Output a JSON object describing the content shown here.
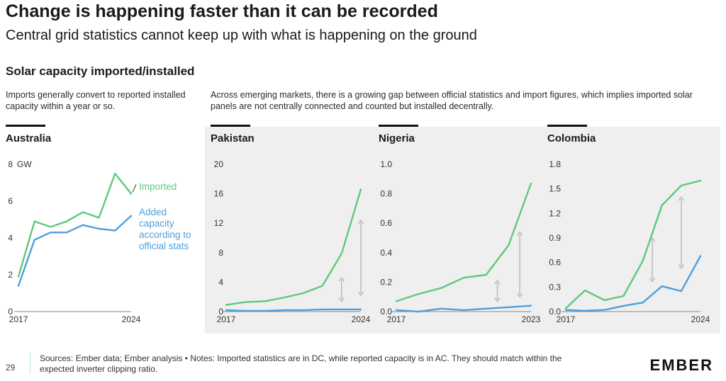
{
  "header": {
    "title": "Change is happening faster than it can be recorded",
    "subtitle": "Central grid statistics cannot keep up with what is happening on the ground",
    "section_title": "Solar capacity imported/installed"
  },
  "notes": {
    "left": "Imports generally convert to reported installed capacity within a year or so.",
    "right": "Across emerging markets, there is a growing gap between official statistics and import figures, which implies imported solar panels are not centrally connected and counted but installed decentrally."
  },
  "colors": {
    "imported": "#5ec97b",
    "official": "#4f9fdc",
    "arrow": "#bdbdbd",
    "panel_bg": "#efefef"
  },
  "legend": {
    "imported": "Imported",
    "official": "Added capacity according to official stats"
  },
  "footer": {
    "page_number": "29",
    "sources": "Sources: Ember data; Ember analysis • Notes: Imported statistics are in DC, while reported capacity is in AC. They should match within the expected inverter clipping ratio.",
    "logo": "EMBER"
  },
  "chart_data": [
    {
      "type": "line",
      "title": "Australia",
      "unit": "GW",
      "x": [
        2017,
        2018,
        2019,
        2020,
        2021,
        2022,
        2023,
        2024
      ],
      "x_tick_labels": [
        "2017",
        "2024"
      ],
      "ylim": [
        0,
        8
      ],
      "y_ticks": [
        0,
        2,
        4,
        6,
        8
      ],
      "y_tick_labels": [
        "0",
        "2",
        "4",
        "6",
        "8"
      ],
      "series": [
        {
          "name": "Imported",
          "key": "imported",
          "values": [
            1.9,
            4.9,
            4.6,
            4.9,
            5.4,
            5.1,
            7.5,
            6.4
          ]
        },
        {
          "name": "Added capacity according to official stats",
          "key": "official",
          "values": [
            1.4,
            3.9,
            4.3,
            4.3,
            4.7,
            4.5,
            4.4,
            5.2
          ]
        }
      ],
      "arrows": []
    },
    {
      "type": "line",
      "title": "Pakistan",
      "x": [
        2017,
        2018,
        2019,
        2020,
        2021,
        2022,
        2023,
        2024
      ],
      "x_tick_labels": [
        "2017",
        "2024"
      ],
      "ylim": [
        0,
        20
      ],
      "y_ticks": [
        0,
        4,
        8,
        12,
        16,
        20
      ],
      "y_tick_labels": [
        "0",
        "4",
        "8",
        "12",
        "16",
        "20"
      ],
      "series": [
        {
          "key": "imported",
          "values": [
            0.9,
            1.3,
            1.4,
            1.9,
            2.5,
            3.5,
            7.9,
            16.6
          ]
        },
        {
          "key": "official",
          "values": [
            0.2,
            0.1,
            0.1,
            0.2,
            0.2,
            0.3,
            0.3,
            0.3
          ]
        }
      ],
      "arrows": [
        {
          "x": 2023,
          "y1": 1.4,
          "y2": 4.6
        },
        {
          "x": 2024,
          "y1": 2.2,
          "y2": 12.4
        }
      ]
    },
    {
      "type": "line",
      "title": "Nigeria",
      "x": [
        2017,
        2018,
        2019,
        2020,
        2021,
        2022,
        2023
      ],
      "x_tick_labels": [
        "2017",
        "2023"
      ],
      "ylim": [
        0,
        1.0
      ],
      "y_ticks": [
        0,
        0.2,
        0.4,
        0.6,
        0.8,
        1.0
      ],
      "y_tick_labels": [
        "0.0",
        "0.2",
        "0.4",
        "0.6",
        "0.8",
        "1.0"
      ],
      "series": [
        {
          "key": "imported",
          "values": [
            0.07,
            0.12,
            0.16,
            0.23,
            0.25,
            0.45,
            0.87
          ]
        },
        {
          "key": "official",
          "values": [
            0.01,
            0.0,
            0.02,
            0.01,
            0.02,
            0.03,
            0.04
          ]
        }
      ],
      "arrows": [
        {
          "x": 2021.5,
          "y1": 0.07,
          "y2": 0.21
        },
        {
          "x": 2022.5,
          "y1": 0.1,
          "y2": 0.54
        }
      ]
    },
    {
      "type": "line",
      "title": "Colombia",
      "x": [
        2017,
        2018,
        2019,
        2020,
        2021,
        2022,
        2023,
        2024
      ],
      "x_tick_labels": [
        "2017",
        "2024"
      ],
      "ylim": [
        0,
        1.8
      ],
      "y_ticks": [
        0,
        0.3,
        0.6,
        0.9,
        1.2,
        1.5,
        1.8
      ],
      "y_tick_labels": [
        "0.0",
        "0.3",
        "0.6",
        "0.9",
        "1.2",
        "1.5",
        "1.8"
      ],
      "series": [
        {
          "key": "imported",
          "values": [
            0.04,
            0.26,
            0.14,
            0.19,
            0.62,
            1.3,
            1.54,
            1.6
          ]
        },
        {
          "key": "official",
          "values": [
            0.02,
            0.01,
            0.02,
            0.07,
            0.11,
            0.31,
            0.25,
            0.68
          ]
        }
      ],
      "arrows": [
        {
          "x": 2021.5,
          "y1": 0.37,
          "y2": 0.9
        },
        {
          "x": 2023,
          "y1": 0.53,
          "y2": 1.4
        }
      ]
    }
  ]
}
